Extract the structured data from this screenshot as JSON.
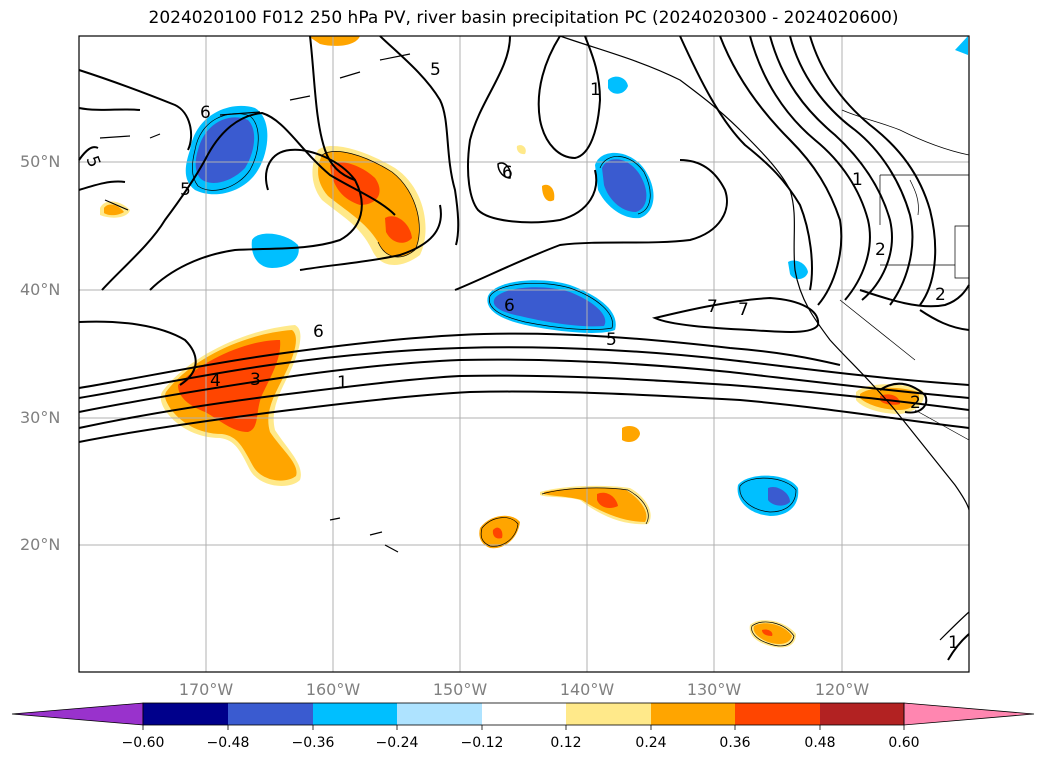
{
  "title": "2024020100 F012 250 hPa PV, river basin precipitation PC (2024020300 - 2024020600)",
  "lat_labels": [
    "50°N",
    "40°N",
    "30°N",
    "20°N"
  ],
  "lon_labels": [
    "170°W",
    "160°W",
    "150°W",
    "140°W",
    "130°W",
    "120°W"
  ],
  "colorbar": {
    "ticks": [
      "−0.60",
      "−0.48",
      "−0.36",
      "−0.24",
      "−0.12",
      "0.12",
      "0.24",
      "0.36",
      "0.48",
      "0.60"
    ],
    "colors": [
      "#9932CC",
      "#00008B",
      "#3A5BD0",
      "#00BFFF",
      "#AEE3FF",
      "#FFFFFF",
      "#FFE98A",
      "#FFA500",
      "#FF4500",
      "#B22222",
      "#FF86B0"
    ]
  },
  "contour_labels": [
    "5",
    "6",
    "5",
    "5",
    "1",
    "1",
    "2",
    "2",
    "7",
    "6",
    "6",
    "5",
    "7",
    "6",
    "4",
    "3",
    "1",
    "2",
    "1"
  ],
  "colors": {
    "land_line": "#000000",
    "grid": "#b0b0b0"
  }
}
